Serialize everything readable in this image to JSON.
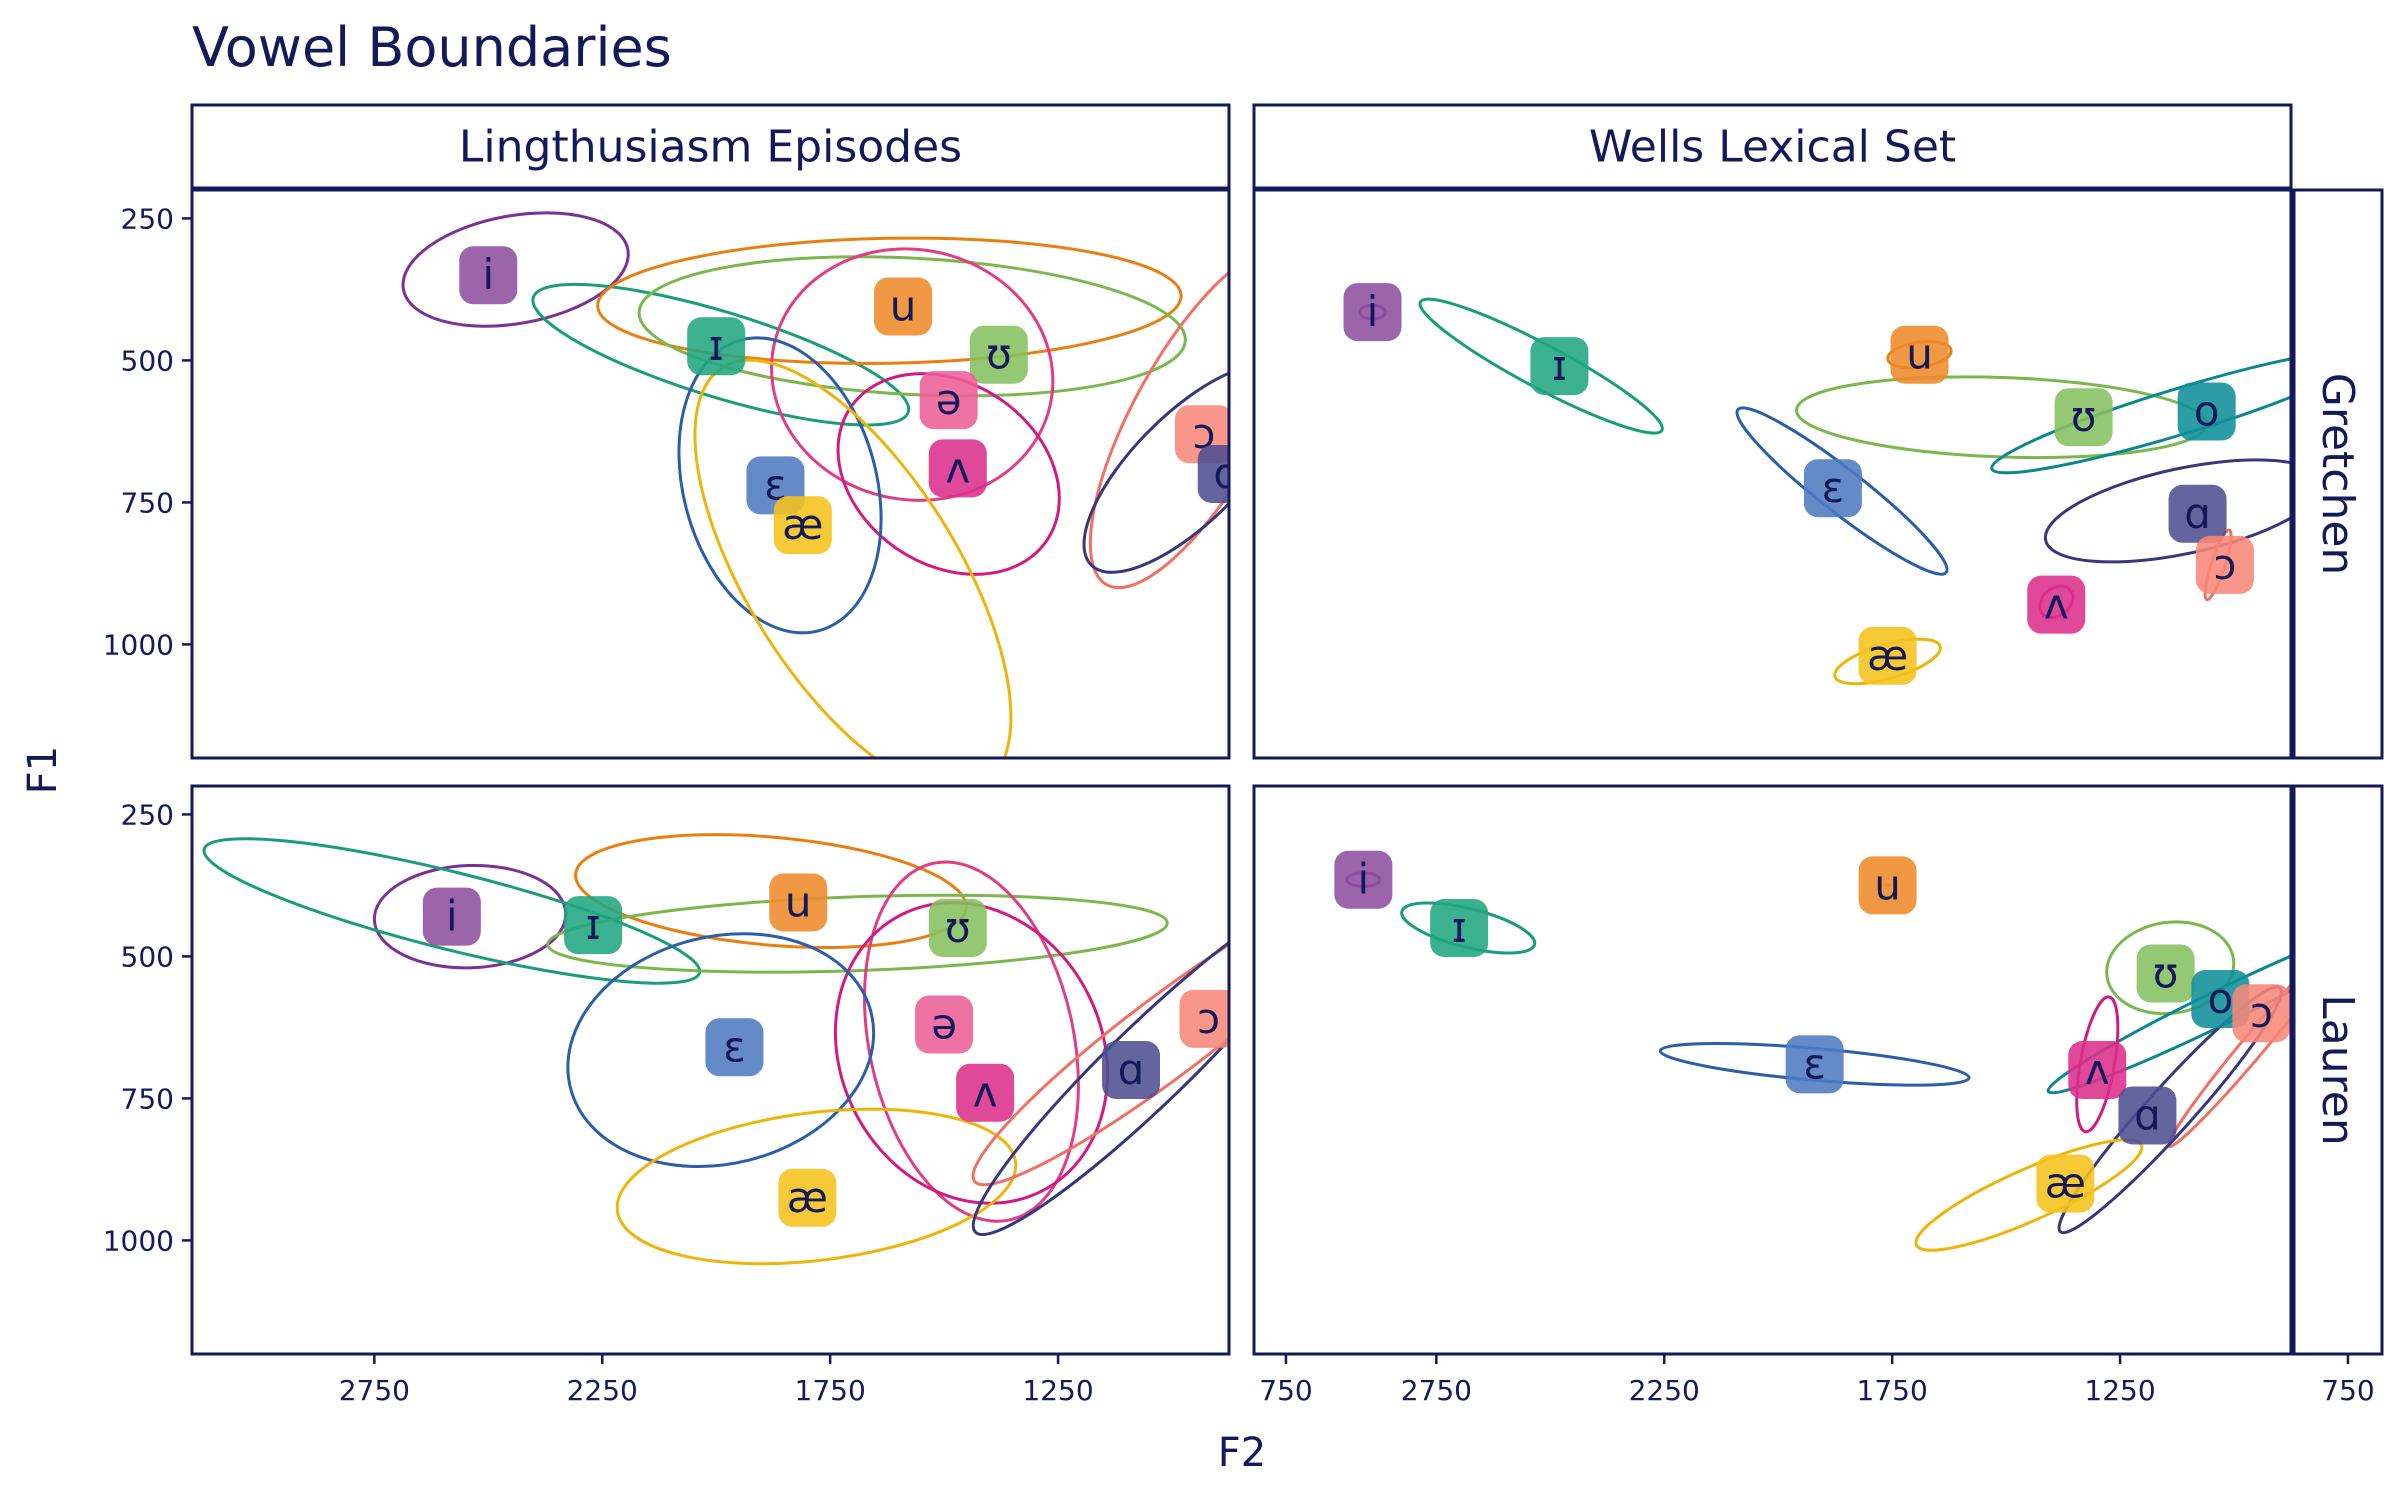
{
  "chart_data": {
    "type": "scatter",
    "title": "Vowel Boundaries",
    "xlabel": "F2",
    "ylabel": "F1",
    "xlim": [
      3150,
      875
    ],
    "ylim": [
      1200,
      200
    ],
    "x_reversed": true,
    "y_reversed": true,
    "x_ticks": [
      2750,
      2250,
      1750,
      1250,
      750
    ],
    "y_ticks": [
      250,
      500,
      750,
      1000
    ],
    "grid": false,
    "column_facets": [
      "Lingthusiasm Episodes",
      "Wells Lexical Set"
    ],
    "row_facets": [
      "Gretchen",
      "Lauren"
    ],
    "vowel_colors": {
      "i": "#8e4f9e",
      "ɪ": "#21a681",
      "ɛ": "#4f7bbf",
      "æ": "#f5c21b",
      "u": "#ee8a2a",
      "ʊ": "#86c060",
      "ə": "#ec5f96",
      "ʌ": "#dc2f8c",
      "ɑ": "#4f4f92",
      "ɔ": "#f88779",
      "o": "#0f8f9a"
    },
    "ellipse_colors": {
      "i": "#7b3294",
      "ɪ": "#1a9e78",
      "ɛ": "#2b5ea8",
      "æ": "#efb40a",
      "u": "#e87f10",
      "ʊ": "#7ab84f",
      "ə": "#e23c86",
      "ʌ": "#d31a82",
      "ɑ": "#37377d",
      "ɔ": "#f36f62",
      "o": "#0b8790"
    },
    "panels": [
      {
        "speaker": "Gretchen",
        "source": "Lingthusiasm Episodes",
        "vowels": [
          {
            "v": "i",
            "f2": 2500,
            "f1": 350,
            "ellipse": {
              "cx": 2440,
              "cy": 340,
              "rx": 250,
              "ry": 95,
              "angle": -10
            }
          },
          {
            "v": "ɪ",
            "f2": 2000,
            "f1": 475,
            "ellipse": {
              "cx": 1990,
              "cy": 490,
              "rx": 430,
              "ry": 75,
              "angle": 17
            }
          },
          {
            "v": "u",
            "f2": 1590,
            "f1": 405,
            "ellipse": {
              "cx": 1620,
              "cy": 395,
              "rx": 640,
              "ry": 110,
              "angle": -1
            }
          },
          {
            "v": "ʊ",
            "f2": 1380,
            "f1": 490,
            "ellipse": {
              "cx": 1570,
              "cy": 440,
              "rx": 600,
              "ry": 120,
              "angle": 3
            }
          },
          {
            "v": "ə",
            "f2": 1490,
            "f1": 570,
            "ellipse": {
              "cx": 1570,
              "cy": 525,
              "rx": 310,
              "ry": 220,
              "angle": 12
            }
          },
          {
            "v": "ʌ",
            "f2": 1470,
            "f1": 690,
            "ellipse": {
              "cx": 1490,
              "cy": 700,
              "rx": 260,
              "ry": 160,
              "angle": 34
            }
          },
          {
            "v": "ɛ",
            "f2": 1870,
            "f1": 720,
            "ellipse": {
              "cx": 1860,
              "cy": 720,
              "rx": 330,
              "ry": 170,
              "angle": 75
            }
          },
          {
            "v": "æ",
            "f2": 1810,
            "f1": 790,
            "ellipse": {
              "cx": 1700,
              "cy": 880,
              "rx": 540,
              "ry": 185,
              "angle": 58
            }
          },
          {
            "v": "ɔ",
            "f2": 930,
            "f1": 630,
            "ellipse": {
              "cx": 940,
              "cy": 600,
              "rx": 420,
              "ry": 115,
              "angle": -61
            }
          },
          {
            "v": "ɑ",
            "f2": 880,
            "f1": 700,
            "ellipse": {
              "cx": 965,
              "cy": 690,
              "rx": 300,
              "ry": 95,
              "angle": -45
            }
          }
        ]
      },
      {
        "speaker": "Gretchen",
        "source": "Wells Lexical Set",
        "vowels": [
          {
            "v": "i",
            "f2": 2890,
            "f1": 415,
            "ellipse": {
              "cx": 2890,
              "cy": 415,
              "rx": 28,
              "ry": 12,
              "angle": 0
            }
          },
          {
            "v": "ɪ",
            "f2": 2480,
            "f1": 510,
            "ellipse": {
              "cx": 2520,
              "cy": 510,
              "rx": 300,
              "ry": 38,
              "angle": 28
            }
          },
          {
            "v": "u",
            "f2": 1690,
            "f1": 490,
            "ellipse": {
              "cx": 1690,
              "cy": 490,
              "rx": 70,
              "ry": 22,
              "angle": -8
            }
          },
          {
            "v": "ʊ",
            "f2": 1330,
            "f1": 600,
            "ellipse": {
              "cx": 1510,
              "cy": 600,
              "rx": 450,
              "ry": 70,
              "angle": 2
            }
          },
          {
            "v": "o",
            "f2": 1060,
            "f1": 590,
            "ellipse": {
              "cx": 1120,
              "cy": 590,
              "rx": 430,
              "ry": 40,
              "angle": -17
            }
          },
          {
            "v": "ɛ",
            "f2": 1880,
            "f1": 725,
            "ellipse": {
              "cx": 1860,
              "cy": 730,
              "rx": 290,
              "ry": 38,
              "angle": 38
            }
          },
          {
            "v": "ɑ",
            "f2": 1080,
            "f1": 770,
            "ellipse": {
              "cx": 1110,
              "cy": 765,
              "rx": 310,
              "ry": 75,
              "angle": -12
            }
          },
          {
            "v": "ɔ",
            "f2": 1020,
            "f1": 860,
            "ellipse": {
              "cx": 1035,
              "cy": 860,
              "rx": 80,
              "ry": 12,
              "angle": -72
            }
          },
          {
            "v": "ʌ",
            "f2": 1390,
            "f1": 930,
            "ellipse": {
              "cx": 1390,
              "cy": 925,
              "rx": 40,
              "ry": 24,
              "angle": -40
            }
          },
          {
            "v": "æ",
            "f2": 1760,
            "f1": 1020,
            "ellipse": {
              "cx": 1760,
              "cy": 1030,
              "rx": 120,
              "ry": 30,
              "angle": -16
            }
          }
        ]
      },
      {
        "speaker": "Lauren",
        "source": "Lingthusiasm Episodes",
        "vowels": [
          {
            "v": "i",
            "f2": 2580,
            "f1": 430,
            "ellipse": {
              "cx": 2540,
              "cy": 430,
              "rx": 210,
              "ry": 90,
              "angle": -2
            }
          },
          {
            "v": "ɪ",
            "f2": 2270,
            "f1": 445,
            "ellipse": {
              "cx": 2580,
              "cy": 420,
              "rx": 560,
              "ry": 68,
              "angle": 14
            }
          },
          {
            "v": "u",
            "f2": 1820,
            "f1": 405,
            "ellipse": {
              "cx": 1880,
              "cy": 385,
              "rx": 430,
              "ry": 95,
              "angle": 5
            }
          },
          {
            "v": "ʊ",
            "f2": 1470,
            "f1": 450,
            "ellipse": {
              "cx": 1690,
              "cy": 460,
              "rx": 680,
              "ry": 65,
              "angle": -2
            }
          },
          {
            "v": "ə",
            "f2": 1500,
            "f1": 620,
            "ellipse": {
              "cx": 1440,
              "cy": 650,
              "rx": 400,
              "ry": 180,
              "angle": 78
            }
          },
          {
            "v": "ʌ",
            "f2": 1410,
            "f1": 740,
            "ellipse": {
              "cx": 1440,
              "cy": 670,
              "rx": 340,
              "ry": 230,
              "angle": 63
            }
          },
          {
            "v": "ɛ",
            "f2": 1960,
            "f1": 660,
            "ellipse": {
              "cx": 1990,
              "cy": 665,
              "rx": 340,
              "ry": 200,
              "angle": -14
            }
          },
          {
            "v": "æ",
            "f2": 1800,
            "f1": 925,
            "ellipse": {
              "cx": 1780,
              "cy": 905,
              "rx": 440,
              "ry": 130,
              "angle": -7
            }
          },
          {
            "v": "ɔ",
            "f2": 920,
            "f1": 610,
            "ellipse": {
              "cx": 1010,
              "cy": 640,
              "rx": 530,
              "ry": 70,
              "angle": -37
            }
          },
          {
            "v": "ɑ",
            "f2": 1090,
            "f1": 700,
            "ellipse": {
              "cx": 1050,
              "cy": 690,
              "rx": 530,
              "ry": 70,
              "angle": -44
            }
          }
        ]
      },
      {
        "speaker": "Lauren",
        "source": "Wells Lexical Set",
        "vowels": [
          {
            "v": "i",
            "f2": 2910,
            "f1": 365,
            "ellipse": {
              "cx": 2910,
              "cy": 365,
              "rx": 36,
              "ry": 12,
              "angle": 0
            }
          },
          {
            "v": "ɪ",
            "f2": 2700,
            "f1": 450,
            "ellipse": {
              "cx": 2680,
              "cy": 450,
              "rx": 150,
              "ry": 34,
              "angle": 14
            }
          },
          {
            "v": "u",
            "f2": 1760,
            "f1": 375,
            "ellipse": {
              "cx": 1760,
              "cy": 375,
              "rx": 1,
              "ry": 1,
              "angle": 0
            }
          },
          {
            "v": "ʊ",
            "f2": 1150,
            "f1": 530,
            "ellipse": {
              "cx": 1140,
              "cy": 520,
              "rx": 140,
              "ry": 80,
              "angle": -8
            }
          },
          {
            "v": "o",
            "f2": 1030,
            "f1": 575,
            "ellipse": {
              "cx": 1030,
              "cy": 590,
              "rx": 420,
              "ry": 30,
              "angle": -26
            }
          },
          {
            "v": "ɔ",
            "f2": 940,
            "f1": 600,
            "ellipse": {
              "cx": 950,
              "cy": 650,
              "rx": 300,
              "ry": 20,
              "angle": -50
            }
          },
          {
            "v": "ɛ",
            "f2": 1920,
            "f1": 690,
            "ellipse": {
              "cx": 1920,
              "cy": 690,
              "rx": 340,
              "ry": 28,
              "angle": 5
            }
          },
          {
            "v": "ʌ",
            "f2": 1300,
            "f1": 700,
            "ellipse": {
              "cx": 1300,
              "cy": 690,
              "rx": 150,
              "ry": 30,
              "angle": -80
            }
          },
          {
            "v": "ɑ",
            "f2": 1190,
            "f1": 780,
            "ellipse": {
              "cx": 1140,
              "cy": 770,
              "rx": 360,
              "ry": 40,
              "angle": -48
            }
          },
          {
            "v": "æ",
            "f2": 1370,
            "f1": 900,
            "ellipse": {
              "cx": 1450,
              "cy": 920,
              "rx": 270,
              "ry": 45,
              "angle": -24
            }
          }
        ]
      }
    ]
  }
}
